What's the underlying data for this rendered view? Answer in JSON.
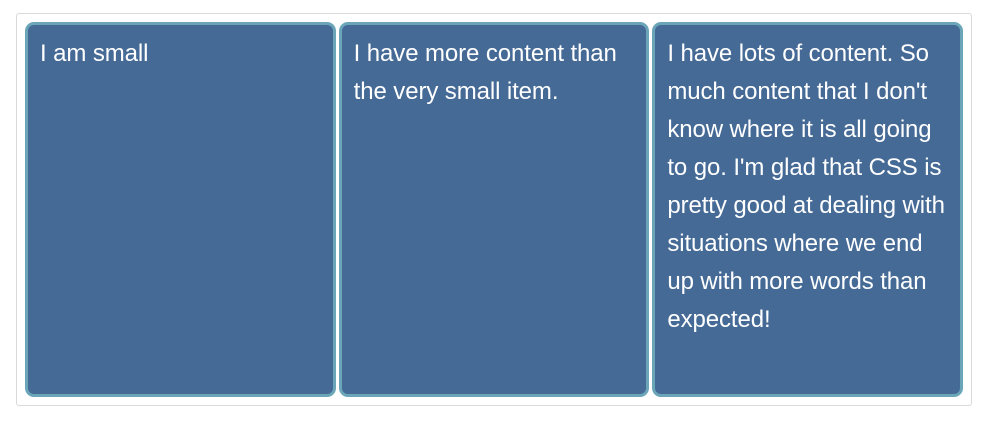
{
  "items": [
    {
      "text": "I am small"
    },
    {
      "text": "I have more content than the very small item."
    },
    {
      "text": "I have lots of content. So much content that I don't know where it is all going to go. I'm glad that CSS is pretty good at dealing with situations where we end up with more words than expected!"
    }
  ],
  "colors": {
    "item_background": "#456a96",
    "item_border": "#6aa5b8",
    "item_text": "#ffffff",
    "wrapper_border": "#d9d9d9"
  }
}
